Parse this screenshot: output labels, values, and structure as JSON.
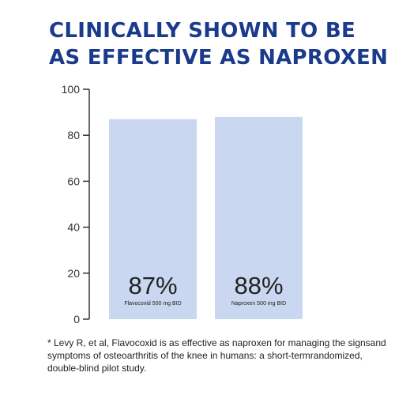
{
  "headline": {
    "line1": "CLINICALLY SHOWN TO BE",
    "line2": "AS EFFECTIVE AS NAPROXEN"
  },
  "colors": {
    "headline": "#1a3a8c",
    "bar": "#c9d8f0",
    "axis": "#333333",
    "bar_text": "#222222"
  },
  "chart_data": {
    "type": "bar",
    "categories": [
      "Flavocoxid 500 mg BID",
      "Naproxen 500 mg BID"
    ],
    "values": [
      87,
      88
    ],
    "bar_value_labels": [
      "87%",
      "88%"
    ],
    "y_ticks": [
      "0",
      "20",
      "40",
      "60",
      "80",
      "100"
    ],
    "ylim": [
      0,
      100
    ],
    "grid": false
  },
  "footnote": "* Levy R, et al, Flavocoxid is as effective as naproxen for managing the signsand symptoms of osteoarthritis of the knee in humans: a short-termrandomized, double-blind pilot study."
}
